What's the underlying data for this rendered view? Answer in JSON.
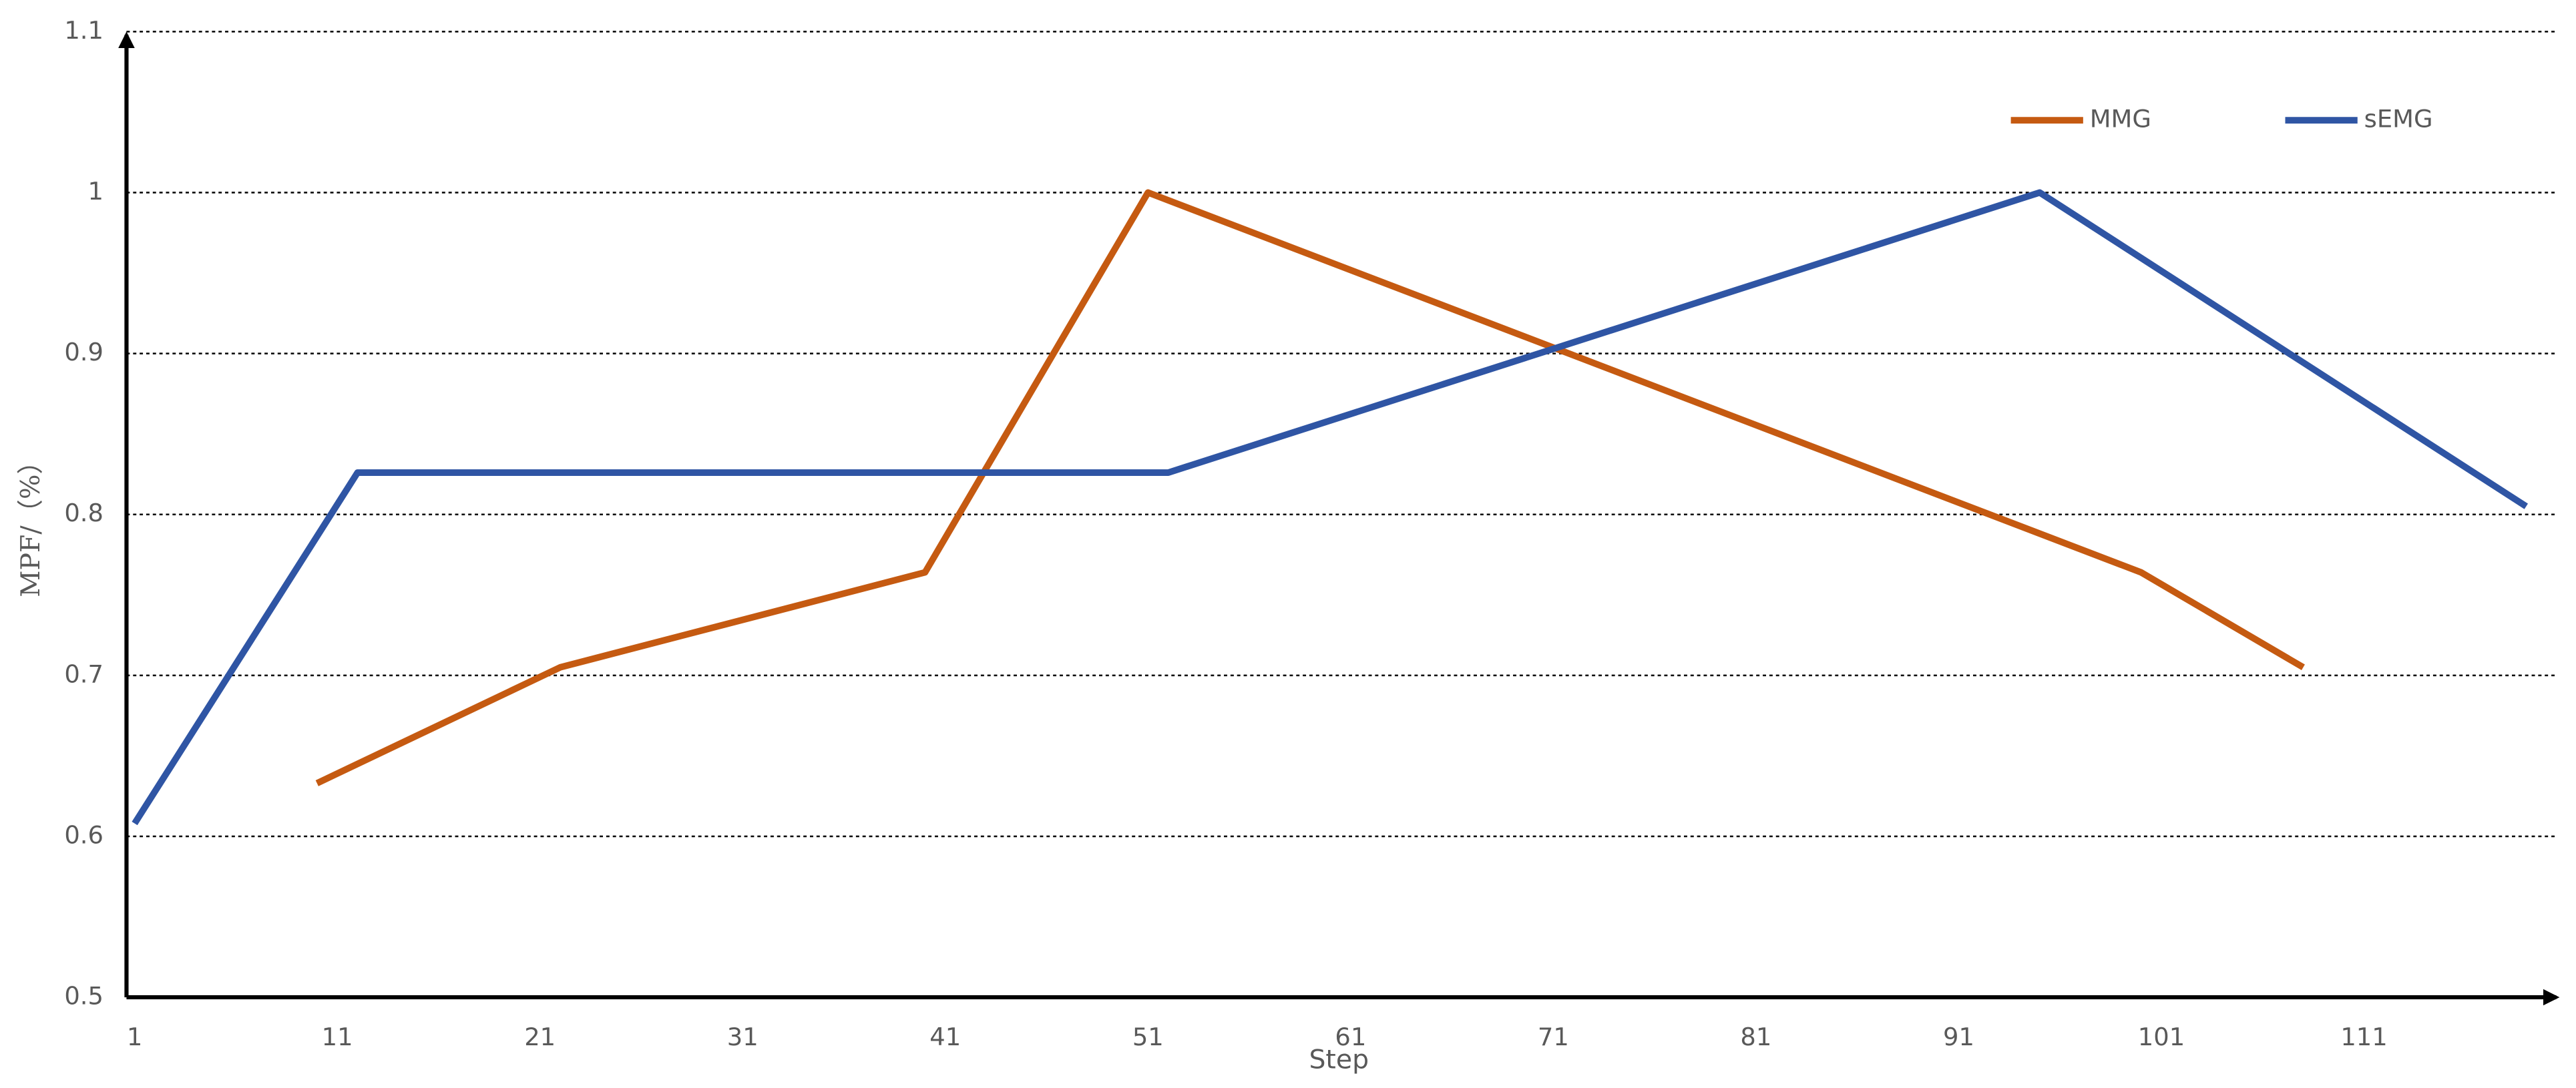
{
  "chart_data": {
    "type": "line",
    "xlabel": "Step",
    "ylabel": "MPF/（%）",
    "xlim": [
      0.6,
      120
    ],
    "xticks": [
      1,
      11,
      21,
      31,
      41,
      51,
      61,
      71,
      81,
      91,
      101,
      111
    ],
    "ylim": [
      0.5,
      1.1
    ],
    "yticks": [
      0.5,
      0.6,
      0.7,
      0.8,
      0.9,
      1,
      1.1
    ],
    "grid": true,
    "legend": "upper right",
    "series": [
      {
        "name": "MMG",
        "color": "#c55a11",
        "x": [
          10,
          22,
          40,
          51,
          100,
          108
        ],
        "values": [
          0.633,
          0.705,
          0.764,
          1.0,
          0.764,
          0.705
        ]
      },
      {
        "name": "sEMG",
        "color": "#2f55a4",
        "x": [
          1,
          12,
          52,
          95,
          119
        ],
        "values": [
          0.608,
          0.826,
          0.826,
          1.0,
          0.805
        ]
      }
    ]
  }
}
